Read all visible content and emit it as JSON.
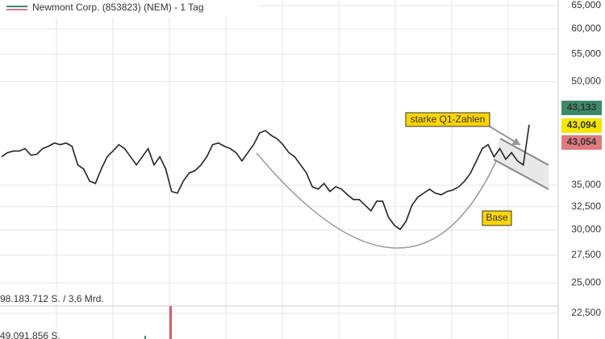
{
  "chart_data": {
    "type": "line",
    "title": "Newmont Corp. (853823) (NEM) - 1 Tag",
    "log_scale": true,
    "grid": true,
    "color": "#222222",
    "ylim": [
      66280,
      20590
    ],
    "yticks": [
      {
        "value": 65000,
        "label": "65,000"
      },
      {
        "value": 60000,
        "label": "60,000"
      },
      {
        "value": 55000,
        "label": "55,000"
      },
      {
        "value": 50000,
        "label": "50,000"
      },
      {
        "value": 35000,
        "label": "35,000"
      },
      {
        "value": 32500,
        "label": "32,500"
      },
      {
        "value": 30000,
        "label": "30,000"
      },
      {
        "value": 27500,
        "label": "27,500"
      },
      {
        "value": 25000,
        "label": "25,000"
      },
      {
        "value": 22500,
        "label": "22,500"
      }
    ],
    "values": [
      38600,
      39150,
      39370,
      39370,
      39700,
      38820,
      38930,
      39700,
      40030,
      40470,
      40250,
      40470,
      40030,
      37530,
      37000,
      35500,
      35210,
      37000,
      38600,
      39370,
      40250,
      39700,
      38600,
      37530,
      38600,
      39700,
      37530,
      38600,
      37000,
      34240,
      34050,
      35500,
      36500,
      36800,
      37530,
      38600,
      40250,
      40470,
      40030,
      39700,
      39150,
      38050,
      39150,
      40250,
      41900,
      42250,
      41550,
      41070,
      40250,
      39150,
      38600,
      37530,
      36500,
      34810,
      34520,
      35210,
      34240,
      34810,
      34520,
      33860,
      33310,
      33310,
      32660,
      32030,
      33120,
      33120,
      31330,
      30480,
      30050,
      30900,
      32660,
      33580,
      34050,
      34520,
      34050,
      33860,
      34240,
      34430,
      34810,
      35500,
      36500,
      38050,
      39700,
      40250,
      38600,
      39700,
      38270,
      39150,
      38050,
      37530,
      43100
    ],
    "price_labels": [
      {
        "value": 43133,
        "label": "43,133",
        "color": "#3d8a68"
      },
      {
        "value": 43094,
        "label": "43,094",
        "color": "#f5e600"
      },
      {
        "value": 43054,
        "label": "43,054",
        "color": "#e07a7f"
      }
    ],
    "annotations": [
      "starke Q1-Zahlen",
      "Base"
    ],
    "volume_labels": [
      "98.183.712 S. / 3,6 Mrd.",
      "49.091.856 S."
    ]
  }
}
